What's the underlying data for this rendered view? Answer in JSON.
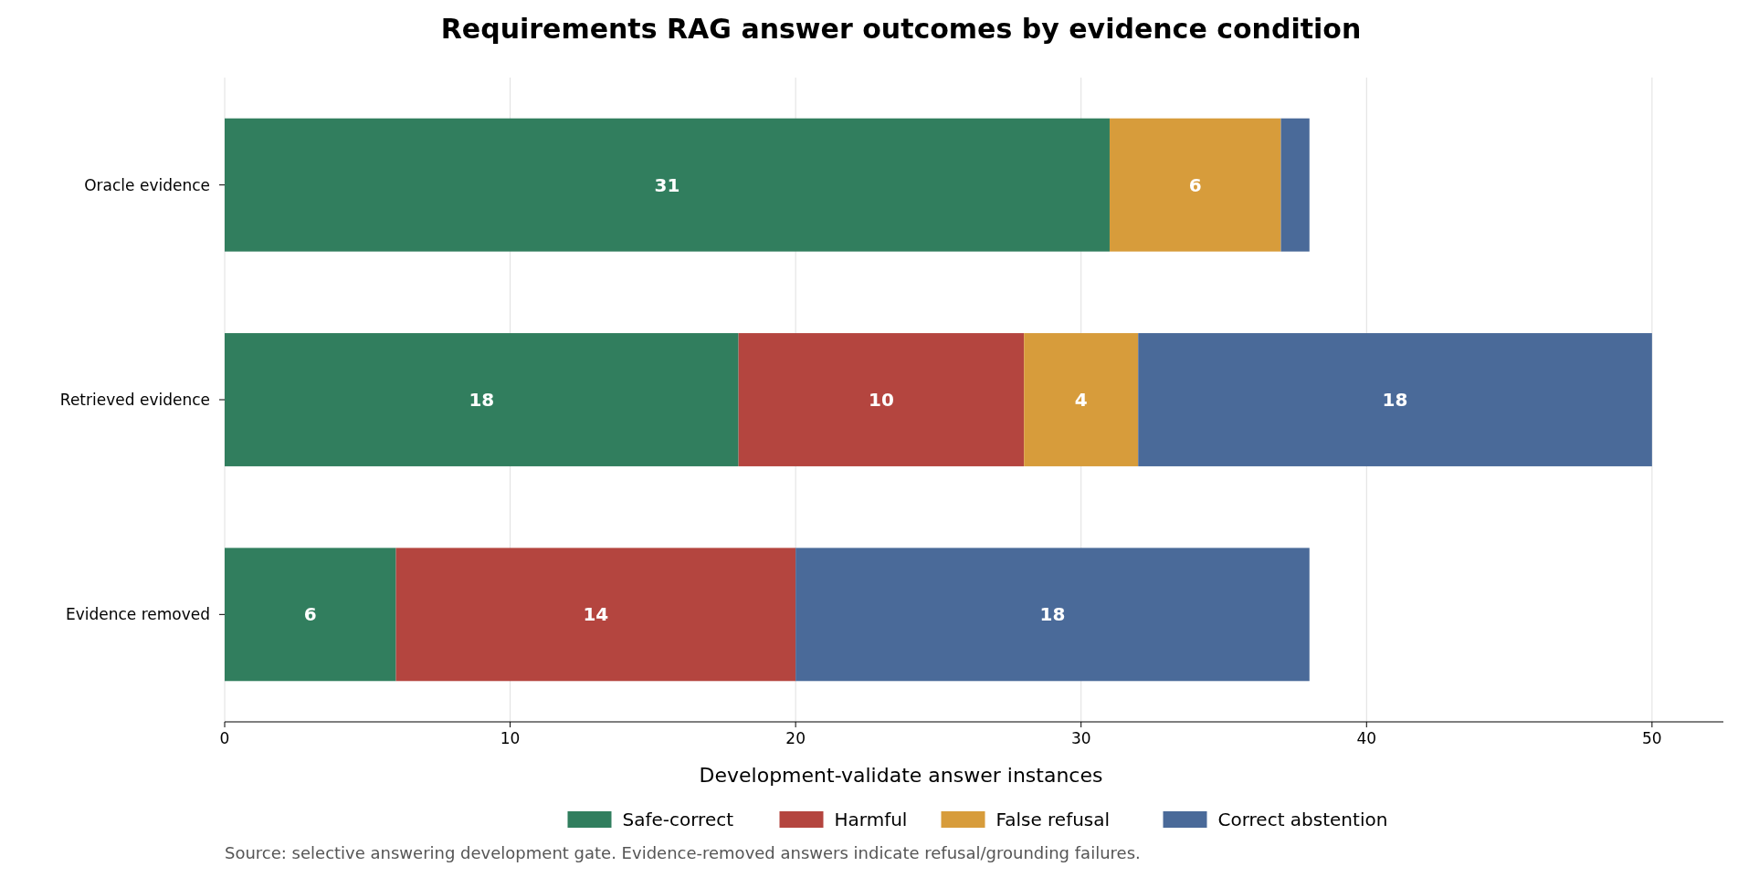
{
  "chart_data": {
    "type": "bar",
    "orientation": "horizontal",
    "stacked": true,
    "title": "Requirements RAG answer outcomes by evidence condition",
    "xlabel": "Development-validate answer instances",
    "categories": [
      "Oracle evidence",
      "Retrieved evidence",
      "Evidence removed"
    ],
    "series": [
      {
        "name": "Safe-correct",
        "color": "#317e5e",
        "values": [
          31,
          18,
          6
        ],
        "value_labels": [
          "31",
          "18",
          "6"
        ]
      },
      {
        "name": "Harmful",
        "color": "#b4453f",
        "values": [
          0,
          10,
          14
        ],
        "value_labels": [
          null,
          "10",
          "14"
        ]
      },
      {
        "name": "False refusal",
        "color": "#d79c3b",
        "values": [
          6,
          4,
          0
        ],
        "value_labels": [
          "6",
          "4",
          null
        ]
      },
      {
        "name": "Correct abstention",
        "color": "#4a6a99",
        "values": [
          1,
          18,
          18
        ],
        "value_labels": [
          null,
          "18",
          "18"
        ]
      }
    ],
    "xlim": [
      0,
      52.5
    ],
    "xticks": [
      0,
      10,
      20,
      30,
      40,
      50
    ],
    "grid": "x",
    "legend": "bottom",
    "annotations": [
      "Source: selective answering development gate. Evidence-removed answers indicate refusal/grounding failures."
    ]
  }
}
